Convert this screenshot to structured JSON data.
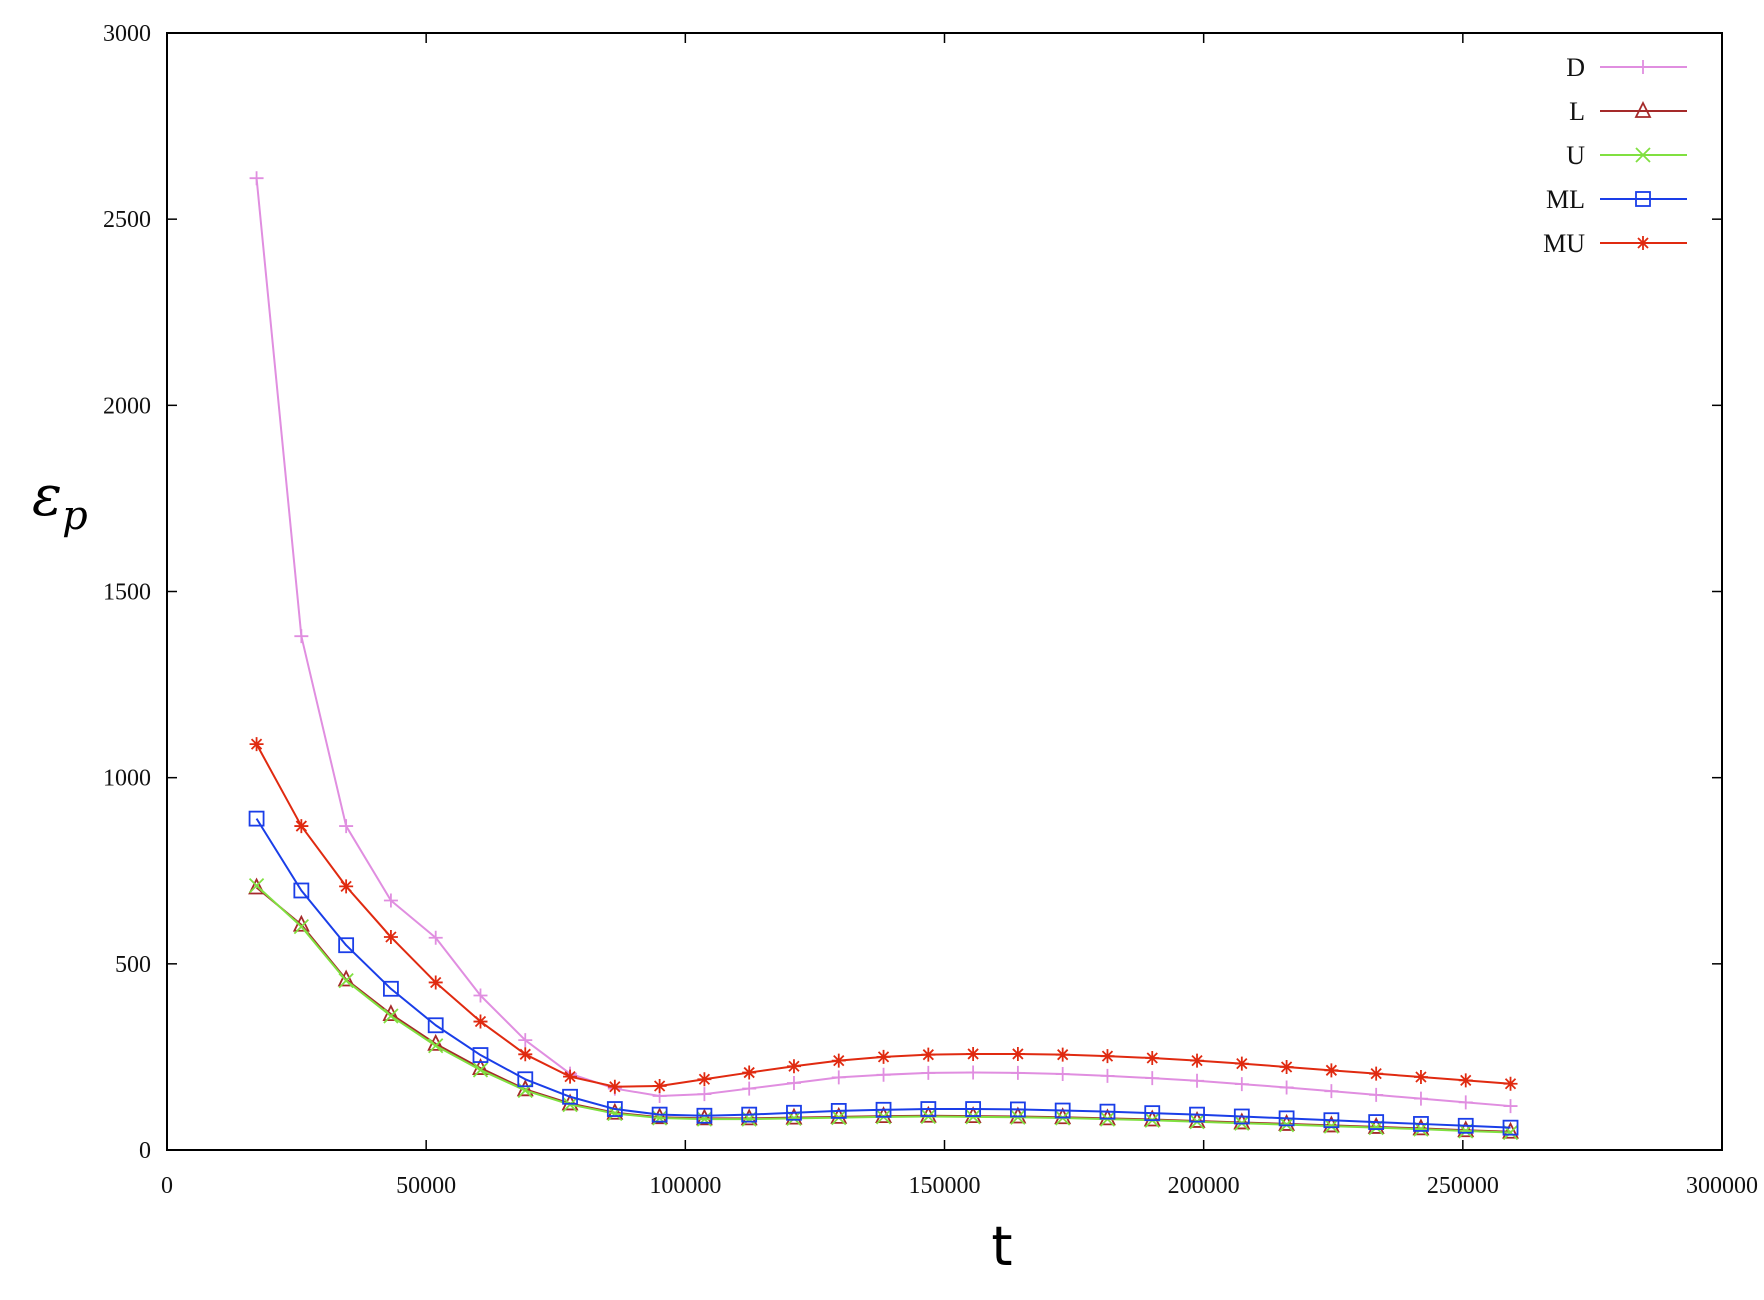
{
  "chart_data": {
    "type": "line",
    "title": "",
    "xlabel": "t",
    "ylabel": "ε",
    "ylabel_subscript": "p",
    "xlim": [
      0,
      300000
    ],
    "ylim": [
      0,
      3000
    ],
    "x_ticks": [
      0,
      50000,
      100000,
      150000,
      200000,
      250000,
      300000
    ],
    "y_ticks": [
      0,
      500,
      1000,
      1500,
      2000,
      2500,
      3000
    ],
    "grid": false,
    "legend_position": "top-right",
    "x": [
      17280,
      25920,
      34560,
      43200,
      51840,
      60480,
      69120,
      77760,
      86400,
      95040,
      103680,
      112320,
      120960,
      129600,
      138240,
      146880,
      155520,
      164160,
      172800,
      181440,
      190080,
      198720,
      207360,
      216000,
      224640,
      233280,
      241920,
      250560,
      259200
    ],
    "series": [
      {
        "name": "D",
        "color": "#e08ee0",
        "marker": "plus",
        "values": [
          2610,
          1380,
          870,
          670,
          570,
          415,
          295,
          205,
          165,
          145,
          150,
          165,
          180,
          195,
          202,
          207,
          208,
          207,
          204,
          199,
          193,
          186,
          177,
          168,
          158,
          148,
          138,
          128,
          118
        ]
      },
      {
        "name": "L",
        "color": "#a52a2a",
        "marker": "triangle",
        "values": [
          705,
          605,
          458,
          365,
          285,
          220,
          163,
          125,
          100,
          88,
          85,
          85,
          87,
          89,
          91,
          92,
          91,
          90,
          88,
          85,
          82,
          78,
          74,
          70,
          66,
          62,
          58,
          53,
          49
        ]
      },
      {
        "name": "U",
        "color": "#80e040",
        "marker": "x",
        "values": [
          710,
          600,
          455,
          360,
          280,
          215,
          160,
          122,
          98,
          86,
          83,
          83,
          85,
          87,
          89,
          90,
          89,
          88,
          86,
          83,
          80,
          76,
          72,
          68,
          64,
          60,
          56,
          51,
          47
        ]
      },
      {
        "name": "ML",
        "color": "#1a3ee8",
        "marker": "square",
        "values": [
          890,
          697,
          550,
          433,
          335,
          255,
          190,
          143,
          110,
          95,
          92,
          95,
          100,
          105,
          108,
          110,
          110,
          109,
          106,
          103,
          99,
          95,
          90,
          85,
          80,
          75,
          70,
          65,
          60
        ]
      },
      {
        "name": "MU",
        "color": "#e02a10",
        "marker": "star",
        "values": [
          1090,
          870,
          708,
          572,
          450,
          345,
          257,
          197,
          170,
          172,
          190,
          208,
          225,
          240,
          250,
          256,
          258,
          258,
          256,
          252,
          247,
          240,
          232,
          223,
          214,
          205,
          196,
          187,
          178
        ]
      }
    ]
  }
}
